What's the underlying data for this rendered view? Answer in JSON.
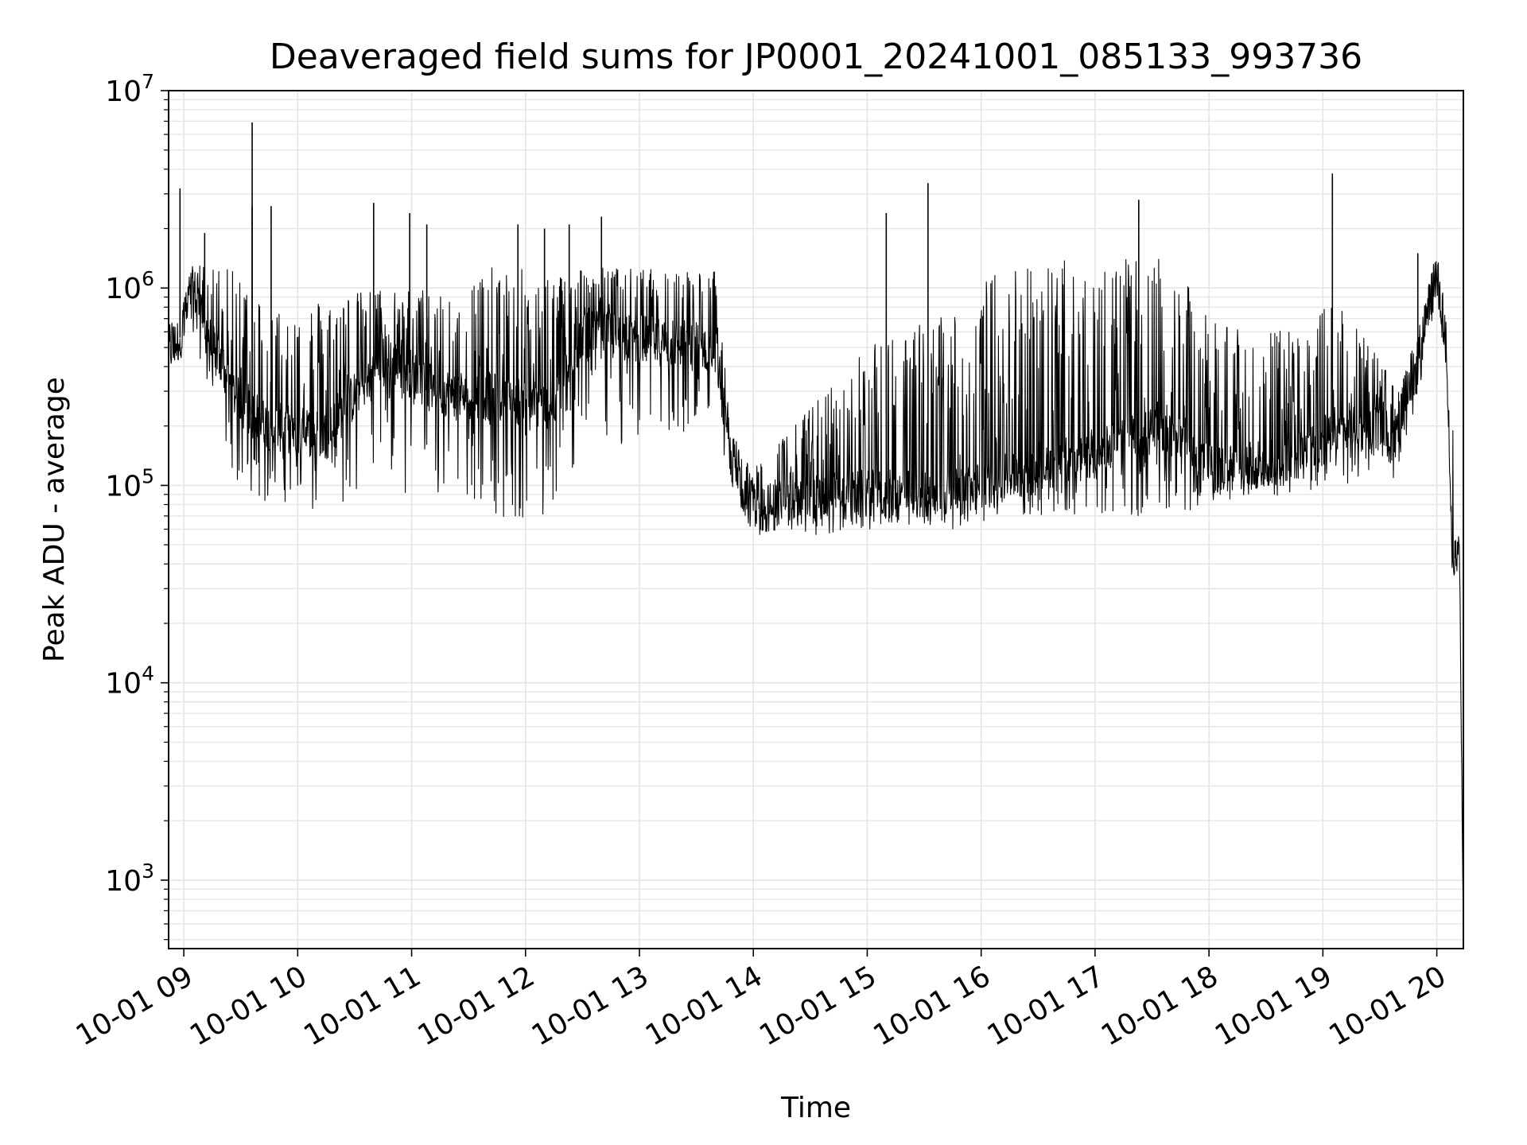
{
  "chart_data": {
    "type": "line",
    "title": "Deaveraged field sums for JP0001_20241001_085133_993736",
    "xlabel": "Time",
    "ylabel": "Peak ADU - average",
    "yscale": "log",
    "grid": true,
    "grid_minor": true,
    "line_color": "#000000",
    "grid_color": "#e5e5e5",
    "xlim": [
      "2024-10-01 08:52",
      "2024-10-01 20:14"
    ],
    "ylim": [
      450,
      10000000
    ],
    "x_ticks": [
      {
        "value": "2024-10-01 09:00",
        "label": "10-01 09"
      },
      {
        "value": "2024-10-01 10:00",
        "label": "10-01 10"
      },
      {
        "value": "2024-10-01 11:00",
        "label": "10-01 11"
      },
      {
        "value": "2024-10-01 12:00",
        "label": "10-01 12"
      },
      {
        "value": "2024-10-01 13:00",
        "label": "10-01 13"
      },
      {
        "value": "2024-10-01 14:00",
        "label": "10-01 14"
      },
      {
        "value": "2024-10-01 15:00",
        "label": "10-01 15"
      },
      {
        "value": "2024-10-01 16:00",
        "label": "10-01 16"
      },
      {
        "value": "2024-10-01 17:00",
        "label": "10-01 17"
      },
      {
        "value": "2024-10-01 18:00",
        "label": "10-01 18"
      },
      {
        "value": "2024-10-01 19:00",
        "label": "10-01 19"
      },
      {
        "value": "2024-10-01 20:00",
        "label": "10-01 20"
      }
    ],
    "y_ticks": [
      {
        "value": 1000,
        "base": "10",
        "exp": "3"
      },
      {
        "value": 10000,
        "base": "10",
        "exp": "4"
      },
      {
        "value": 100000,
        "base": "10",
        "exp": "5"
      },
      {
        "value": 1000000,
        "base": "10",
        "exp": "6"
      },
      {
        "value": 10000000,
        "base": "10",
        "exp": "7"
      }
    ],
    "series": [
      {
        "envelope": [
          {
            "x": "2024-10-01 08:52",
            "low": 380000,
            "base": 480000,
            "high": 650000
          },
          {
            "x": "2024-10-01 08:58",
            "low": 450000,
            "base": 560000,
            "high": 800000
          },
          {
            "x": "2024-10-01 09:05",
            "low": 600000,
            "base": 1000000,
            "high": 1350000
          },
          {
            "x": "2024-10-01 09:15",
            "low": 250000,
            "base": 500000,
            "high": 1300000
          },
          {
            "x": "2024-10-01 09:30",
            "low": 90000,
            "base": 250000,
            "high": 1200000
          },
          {
            "x": "2024-10-01 09:45",
            "low": 80000,
            "base": 200000,
            "high": 800000
          },
          {
            "x": "2024-10-01 10:15",
            "low": 60000,
            "base": 180000,
            "high": 900000
          },
          {
            "x": "2024-10-01 10:45",
            "low": 90000,
            "base": 450000,
            "high": 1000000
          },
          {
            "x": "2024-10-01 11:15",
            "low": 80000,
            "base": 300000,
            "high": 1000000
          },
          {
            "x": "2024-10-01 11:45",
            "low": 70000,
            "base": 280000,
            "high": 1300000
          },
          {
            "x": "2024-10-01 12:15",
            "low": 60000,
            "base": 250000,
            "high": 1200000
          },
          {
            "x": "2024-10-01 12:30",
            "low": 150000,
            "base": 600000,
            "high": 1300000
          },
          {
            "x": "2024-10-01 13:00",
            "low": 160000,
            "base": 550000,
            "high": 1250000
          },
          {
            "x": "2024-10-01 13:40",
            "low": 170000,
            "base": 500000,
            "high": 1250000
          },
          {
            "x": "2024-10-01 13:48",
            "low": 100000,
            "base": 140000,
            "high": 200000
          },
          {
            "x": "2024-10-01 14:00",
            "low": 55000,
            "base": 75000,
            "high": 120000
          },
          {
            "x": "2024-10-01 14:30",
            "low": 55000,
            "base": 85000,
            "high": 250000
          },
          {
            "x": "2024-10-01 15:00",
            "low": 60000,
            "base": 90000,
            "high": 500000
          },
          {
            "x": "2024-10-01 15:45",
            "low": 60000,
            "base": 90000,
            "high": 800000
          },
          {
            "x": "2024-10-01 16:15",
            "low": 70000,
            "base": 110000,
            "high": 1400000
          },
          {
            "x": "2024-10-01 17:00",
            "low": 70000,
            "base": 150000,
            "high": 1400000
          },
          {
            "x": "2024-10-01 17:40",
            "low": 70000,
            "base": 200000,
            "high": 1400000
          },
          {
            "x": "2024-10-01 18:00",
            "low": 80000,
            "base": 120000,
            "high": 700000
          },
          {
            "x": "2024-10-01 18:40",
            "low": 90000,
            "base": 130000,
            "high": 600000
          },
          {
            "x": "2024-10-01 19:10",
            "low": 100000,
            "base": 200000,
            "high": 900000
          },
          {
            "x": "2024-10-01 19:40",
            "low": 110000,
            "base": 180000,
            "high": 300000
          },
          {
            "x": "2024-10-01 19:52",
            "low": 350000,
            "base": 500000,
            "high": 700000
          },
          {
            "x": "2024-10-01 20:00",
            "low": 900000,
            "base": 1200000,
            "high": 1600000
          },
          {
            "x": "2024-10-01 20:05",
            "low": 400000,
            "base": 500000,
            "high": 700000
          },
          {
            "x": "2024-10-01 20:08",
            "low": 45000,
            "base": 50000,
            "high": 250000
          },
          {
            "x": "2024-10-01 20:12",
            "low": 35000,
            "base": 38000,
            "high": 45000
          },
          {
            "x": "2024-10-01 20:14",
            "low": 500,
            "base": 500,
            "high": 500
          }
        ],
        "spikes": [
          {
            "x": "2024-10-01 08:58",
            "y": 3200000
          },
          {
            "x": "2024-10-01 09:11",
            "y": 1900000
          },
          {
            "x": "2024-10-01 09:36",
            "y": 2600000
          },
          {
            "x": "2024-10-01 09:36",
            "y": 6900000
          },
          {
            "x": "2024-10-01 09:46",
            "y": 2600000
          },
          {
            "x": "2024-10-01 10:40",
            "y": 2700000
          },
          {
            "x": "2024-10-01 10:59",
            "y": 2400000
          },
          {
            "x": "2024-10-01 11:08",
            "y": 2100000
          },
          {
            "x": "2024-10-01 11:56",
            "y": 2100000
          },
          {
            "x": "2024-10-01 12:10",
            "y": 2000000
          },
          {
            "x": "2024-10-01 12:23",
            "y": 2100000
          },
          {
            "x": "2024-10-01 12:40",
            "y": 2300000
          },
          {
            "x": "2024-10-01 15:10",
            "y": 2400000
          },
          {
            "x": "2024-10-01 15:32",
            "y": 3400000
          },
          {
            "x": "2024-10-01 17:23",
            "y": 2800000
          },
          {
            "x": "2024-10-01 19:05",
            "y": 3800000
          },
          {
            "x": "2024-10-01 19:50",
            "y": 1500000
          }
        ]
      }
    ]
  }
}
